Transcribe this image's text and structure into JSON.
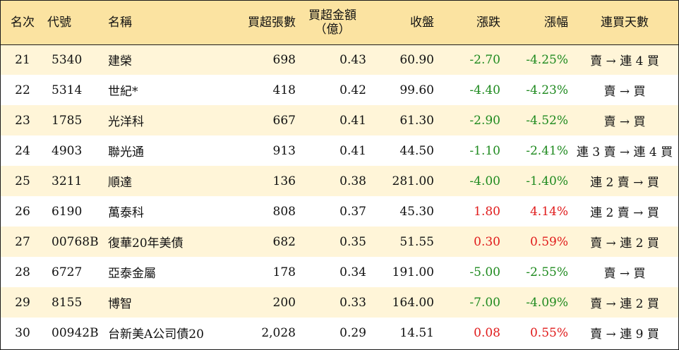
{
  "headers": {
    "rank": "名次",
    "code": "代號",
    "name": "名稱",
    "net_buy_lots": "買超張數",
    "net_buy_amount_line1": "買超金額",
    "net_buy_amount_line2": "（億）",
    "close": "收盤",
    "change": "漲跌",
    "change_pct": "漲幅",
    "consecutive_days": "連買天數"
  },
  "colors": {
    "header_bg": "#fbe3a1",
    "odd_row_bg": "#fff5d8",
    "down": "#1f8a1f",
    "up": "#e01b1b"
  },
  "rows": [
    {
      "rank": "21",
      "code": "5340",
      "name": "建榮",
      "lots": "698",
      "amount": "0.43",
      "close": "60.90",
      "change": "-2.70",
      "pct": "-4.25%",
      "days": "賣 → 連 4 買",
      "dir": "neg"
    },
    {
      "rank": "22",
      "code": "5314",
      "name": "世紀*",
      "lots": "418",
      "amount": "0.42",
      "close": "99.60",
      "change": "-4.40",
      "pct": "-4.23%",
      "days": "賣 → 買",
      "dir": "neg"
    },
    {
      "rank": "23",
      "code": "1785",
      "name": "光洋科",
      "lots": "667",
      "amount": "0.41",
      "close": "61.30",
      "change": "-2.90",
      "pct": "-4.52%",
      "days": "賣 → 買",
      "dir": "neg"
    },
    {
      "rank": "24",
      "code": "4903",
      "name": "聯光通",
      "lots": "913",
      "amount": "0.41",
      "close": "44.50",
      "change": "-1.10",
      "pct": "-2.41%",
      "days": "連 3 賣 → 連 4 買",
      "dir": "neg"
    },
    {
      "rank": "25",
      "code": "3211",
      "name": "順達",
      "lots": "136",
      "amount": "0.38",
      "close": "281.00",
      "change": "-4.00",
      "pct": "-1.40%",
      "days": "連 2 賣 → 買",
      "dir": "neg"
    },
    {
      "rank": "26",
      "code": "6190",
      "name": "萬泰科",
      "lots": "808",
      "amount": "0.37",
      "close": "45.30",
      "change": "1.80",
      "pct": "4.14%",
      "days": "連 2 賣 → 買",
      "dir": "pos"
    },
    {
      "rank": "27",
      "code": "00768B",
      "name": "復華20年美債",
      "lots": "682",
      "amount": "0.35",
      "close": "51.55",
      "change": "0.30",
      "pct": "0.59%",
      "days": "賣 → 連 2 買",
      "dir": "pos"
    },
    {
      "rank": "28",
      "code": "6727",
      "name": "亞泰金屬",
      "lots": "178",
      "amount": "0.34",
      "close": "191.00",
      "change": "-5.00",
      "pct": "-2.55%",
      "days": "賣 → 買",
      "dir": "neg"
    },
    {
      "rank": "29",
      "code": "8155",
      "name": "博智",
      "lots": "200",
      "amount": "0.33",
      "close": "164.00",
      "change": "-7.00",
      "pct": "-4.09%",
      "days": "賣 → 連 2 買",
      "dir": "neg"
    },
    {
      "rank": "30",
      "code": "00942B",
      "name": "台新美A公司債20",
      "lots": "2,028",
      "amount": "0.29",
      "close": "14.51",
      "change": "0.08",
      "pct": "0.55%",
      "days": "賣 → 連 9 買",
      "dir": "pos"
    }
  ]
}
